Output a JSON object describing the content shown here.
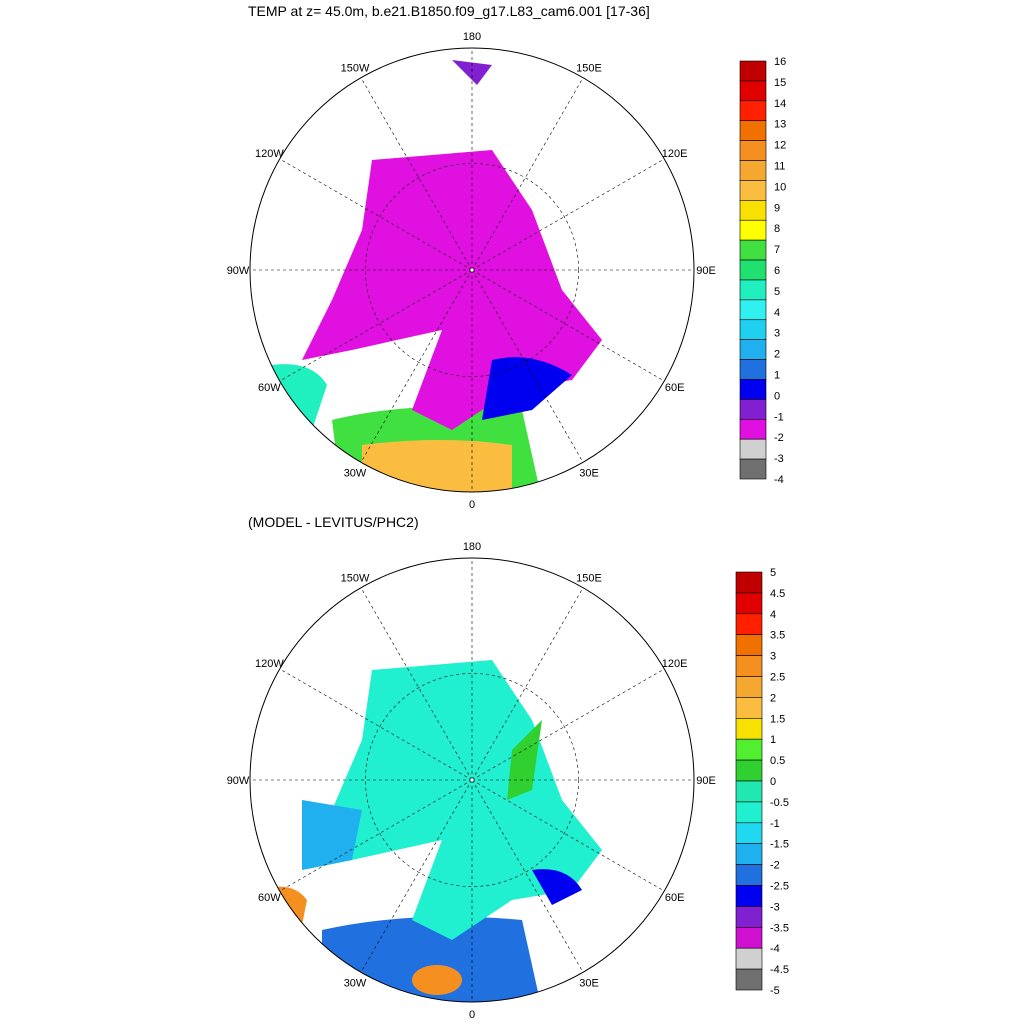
{
  "panels": [
    {
      "id": "top",
      "title": "TEMP at z=  45.0m, b.e21.B1850.f09_g17.L83_cam6.001 [17-36]",
      "lon_labels": [
        "180",
        "150E",
        "120E",
        "90E",
        "60E",
        "30E",
        "0",
        "30W",
        "60W",
        "90W",
        "120W",
        "150W"
      ],
      "colorbar": {
        "labels": [
          "16",
          "15",
          "14",
          "13",
          "12",
          "11",
          "10",
          "9",
          "8",
          "7",
          "6",
          "5",
          "4",
          "3",
          "2",
          "1",
          "0",
          "-1",
          "-2",
          "-3",
          "-4"
        ],
        "colors": [
          "#c00000",
          "#e00000",
          "#ff2000",
          "#f07000",
          "#f59020",
          "#f5a830",
          "#fbbd40",
          "#f8e000",
          "#ffff00",
          "#40e040",
          "#20e070",
          "#20f0c0",
          "#30f0f0",
          "#20d0f0",
          "#20b0f0",
          "#2070e0",
          "#0000f0",
          "#8020d0",
          "#e010e0",
          "#d0d0d0",
          "#707070"
        ]
      },
      "fields": {
        "arctic": "#e010e0",
        "pacific_inflow": "#8020d0",
        "atlantic_warm": "#fbbd40",
        "atlantic_mid": "#40e040",
        "labrador": "#20f0c0",
        "barents_front": "#0000f0"
      }
    },
    {
      "id": "bottom",
      "title": "(MODEL - LEVITUS/PHC2)",
      "lon_labels": [
        "180",
        "150E",
        "120E",
        "90E",
        "60E",
        "30E",
        "0",
        "30W",
        "60W",
        "90W",
        "120W",
        "150W"
      ],
      "colorbar": {
        "labels": [
          "5",
          "4.5",
          "4",
          "3.5",
          "3",
          "2.5",
          "2",
          "1.5",
          "1",
          "0.5",
          "0",
          "-0.5",
          "-1",
          "-1.5",
          "-2",
          "-2.5",
          "-3",
          "-3.5",
          "-4",
          "-4.5",
          "-5"
        ],
        "colors": [
          "#c00000",
          "#e00000",
          "#ff2000",
          "#f07000",
          "#f59020",
          "#f5a830",
          "#fbbd40",
          "#f8e000",
          "#50f030",
          "#30d030",
          "#20e8b0",
          "#20f0d0",
          "#20d8f0",
          "#20b0f0",
          "#2070e0",
          "#0000f0",
          "#8020d0",
          "#d010d0",
          "#d0d0d0",
          "#707070"
        ]
      },
      "fields": {
        "arctic": "#20f0d0",
        "canadian": "#20b0f0",
        "siberian_green": "#30d030",
        "barents_blue": "#0000f0",
        "atlantic_warm": "#f59020",
        "atlantic_cold": "#2070e0"
      }
    }
  ]
}
